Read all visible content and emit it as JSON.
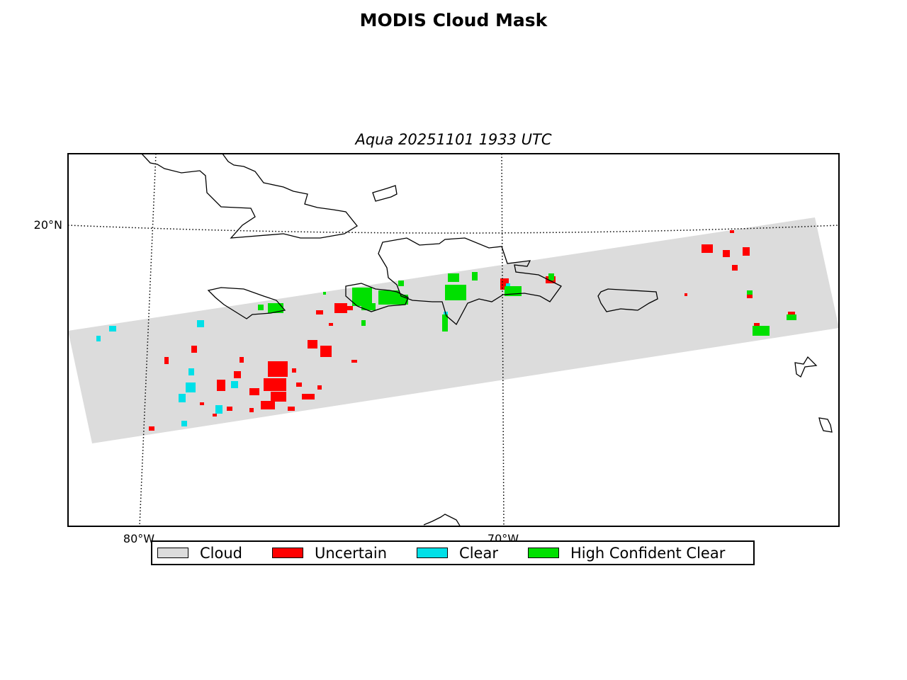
{
  "title": "MODIS Cloud Mask",
  "subtitle": "Aqua 20251101 1933 UTC",
  "gridlines": {
    "latitudes": [
      {
        "value": 20,
        "label": "20°N"
      }
    ],
    "longitudes": [
      {
        "value": -80,
        "label": "80°W"
      },
      {
        "value": -70,
        "label": "70°W"
      }
    ]
  },
  "legend": [
    {
      "label": "Cloud",
      "color": "#dcdcdc"
    },
    {
      "label": "Uncertain",
      "color": "#ff0000"
    },
    {
      "label": "Clear",
      "color": "#00e0e8"
    },
    {
      "label": "High Confident Clear",
      "color": "#00e000"
    }
  ],
  "colors": {
    "cloud": "#dcdcdc",
    "uncertain": "#ff0000",
    "clear": "#00e0e8",
    "high_confident_clear": "#00e000",
    "coastline": "#000000",
    "frame": "#000000"
  },
  "map_region": "Greater Antilles / Caribbean Sea"
}
